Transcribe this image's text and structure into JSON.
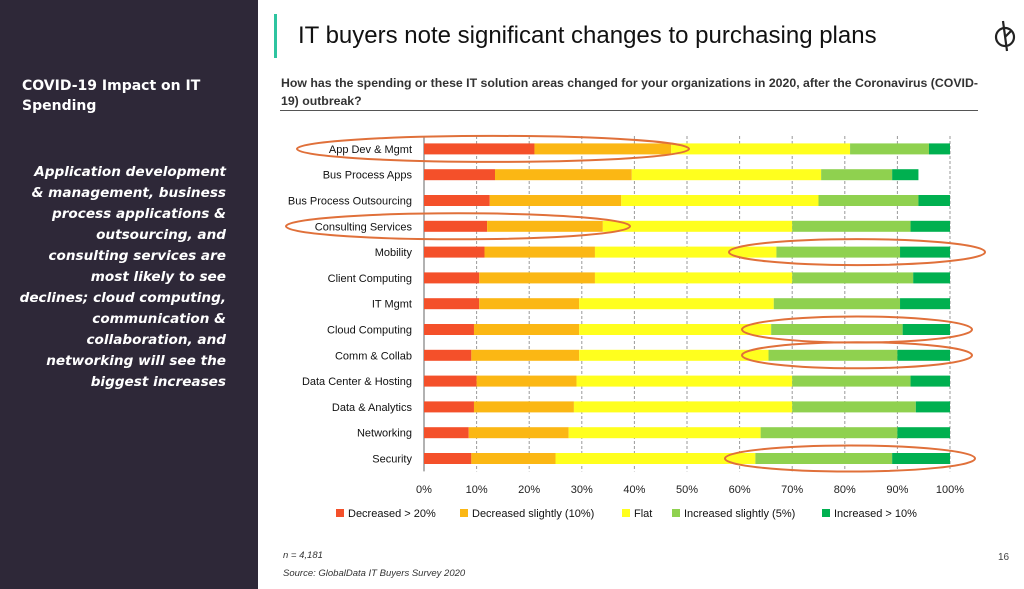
{
  "sidebar": {
    "heading": "COVID-19 Impact on IT Spending",
    "body": "Application development & management, business process applications & outsourcing, and consulting services are most likely to see declines; cloud computing, communication & collaboration, and networking will see the biggest increases"
  },
  "slide": {
    "title": "IT buyers note significant changes to purchasing plans",
    "page_number": "16",
    "logo_icon": "globaldata-logo-icon"
  },
  "footer": {
    "n": "n = 4,181",
    "source": "Source:  GlobalData IT Buyers Survey 2020"
  },
  "colors": {
    "sidebar_bg": "#2e2838",
    "accent_bar": "#2ec4a0",
    "highlight_ellipse": "#e0703a"
  },
  "chart_data": {
    "type": "bar",
    "orientation": "horizontal",
    "stacked": "100%",
    "title": "How has the spending or these IT solution areas changed for your organizations in 2020, after the Coronavirus (COVID-19) outbreak?",
    "categories": [
      "App Dev & Mgmt",
      "Bus Process Apps",
      "Bus Process Outsourcing",
      "Consulting Services",
      "Mobility",
      "Client Computing",
      "IT Mgmt",
      "Cloud Computing",
      "Comm & Collab",
      "Data Center & Hosting",
      "Data & Analytics",
      "Networking",
      "Security"
    ],
    "series": [
      {
        "name": "Decreased > 20%",
        "color": "#f4502a",
        "values": [
          21,
          13.5,
          12.5,
          12,
          11.5,
          10.5,
          10.5,
          9.5,
          9,
          10,
          9.5,
          8.5,
          9
        ]
      },
      {
        "name": "Decreased slightly (10%)",
        "color": "#fbb714",
        "values": [
          26,
          26,
          25,
          22,
          21,
          22,
          19,
          20,
          20.5,
          19,
          19,
          19,
          16
        ]
      },
      {
        "name": "Flat",
        "color": "#ffff1e",
        "values": [
          34,
          36,
          37.5,
          36,
          34.5,
          37.5,
          37,
          36.5,
          36,
          41,
          41.5,
          36.5,
          38
        ]
      },
      {
        "name": "Increased slightly (5%)",
        "color": "#8fd14f",
        "values": [
          15,
          13.5,
          19,
          22.5,
          23.5,
          23,
          24,
          25,
          24.5,
          22.5,
          23.5,
          26,
          26
        ]
      },
      {
        "name": "Increased > 10%",
        "color": "#00b050",
        "values": [
          4,
          5,
          6,
          7.5,
          9.5,
          7,
          9.5,
          9,
          10,
          7.5,
          6.5,
          10,
          11
        ]
      }
    ],
    "xaxis": {
      "ticks": [
        "0%",
        "10%",
        "20%",
        "30%",
        "40%",
        "50%",
        "60%",
        "70%",
        "80%",
        "90%",
        "100%"
      ],
      "xlim": [
        0,
        100
      ]
    },
    "grid": "vertical dashed",
    "legend": "bottom",
    "highlighted_categories": [
      "App Dev & Mgmt",
      "Consulting Services",
      "Mobility",
      "Cloud Computing",
      "Comm & Collab",
      "Security"
    ]
  }
}
